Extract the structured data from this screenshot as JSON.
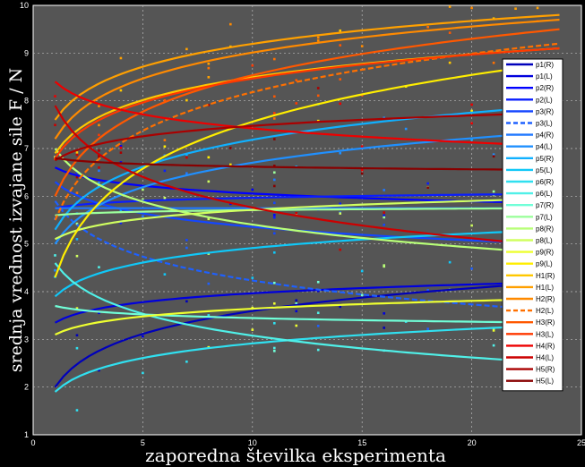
{
  "chart_data": {
    "type": "line",
    "title": "",
    "xlabel": "zaporedna številka eksperimenta",
    "ylabel": "srednja vrednost izvajane sile F / N",
    "xlim": [
      0,
      25
    ],
    "ylim": [
      1,
      10
    ],
    "xticks": [
      "0",
      "5",
      "10",
      "15",
      "20",
      "25"
    ],
    "yticks": [
      "1",
      "2",
      "3",
      "4",
      "5",
      "6",
      "7",
      "8",
      "9",
      "10"
    ],
    "grid": true,
    "legend_position": "right",
    "background": "#555555",
    "series": [
      {
        "name": "p1(R)",
        "color": "#0000bb",
        "x": [
          1,
          24
        ],
        "start": 2.0,
        "end": 4.2,
        "curve": "log"
      },
      {
        "name": "p1(L)",
        "color": "#0000dd",
        "x": [
          1,
          24
        ],
        "start": 3.35,
        "end": 4.2,
        "curve": "log"
      },
      {
        "name": "p2(R)",
        "color": "#0000ff",
        "x": [
          1,
          24
        ],
        "start": 6.6,
        "end": 5.85,
        "curve": "log"
      },
      {
        "name": "p2(L)",
        "color": "#0a1eff",
        "x": [
          1,
          24
        ],
        "start": 5.75,
        "end": 6.05,
        "curve": "log"
      },
      {
        "name": "p3(R)",
        "color": "#1446ff",
        "x": [
          1,
          24
        ],
        "start": 6.3,
        "end": 5.0,
        "curve": "log"
      },
      {
        "name": "p3(L)",
        "color": "#1e60ff",
        "x": [
          1,
          24
        ],
        "start": 5.9,
        "end": 3.6,
        "curve": "log",
        "dashed": true
      },
      {
        "name": "p4(R)",
        "color": "#2078ff",
        "x": [
          1,
          24
        ],
        "start": 5.75,
        "end": 5.75,
        "curve": "log"
      },
      {
        "name": "p4(L)",
        "color": "#2090ff",
        "x": [
          1,
          24
        ],
        "start": 5.0,
        "end": 7.35,
        "curve": "log"
      },
      {
        "name": "p5(R)",
        "color": "#10b0ff",
        "x": [
          1,
          24
        ],
        "start": 5.3,
        "end": 7.9,
        "curve": "log"
      },
      {
        "name": "p5(L)",
        "color": "#10c8f8",
        "x": [
          1,
          24
        ],
        "start": 3.9,
        "end": 5.3,
        "curve": "log"
      },
      {
        "name": "p6(R)",
        "color": "#30e0f0",
        "x": [
          1,
          24
        ],
        "start": 1.9,
        "end": 3.3,
        "curve": "log"
      },
      {
        "name": "p6(L)",
        "color": "#50f0e8",
        "x": [
          1,
          24
        ],
        "start": 4.6,
        "end": 2.5,
        "curve": "log"
      },
      {
        "name": "p7(R)",
        "color": "#70ffd8",
        "x": [
          1,
          24
        ],
        "start": 3.7,
        "end": 3.35,
        "curve": "log"
      },
      {
        "name": "p7(L)",
        "color": "#9cff9c",
        "x": [
          1,
          24
        ],
        "start": 5.6,
        "end": 5.75,
        "curve": "log"
      },
      {
        "name": "p8(R)",
        "color": "#b8ff78",
        "x": [
          1,
          24
        ],
        "start": 7.0,
        "end": 4.8,
        "curve": "log"
      },
      {
        "name": "p8(L)",
        "color": "#d0ff60",
        "x": [
          1,
          24
        ],
        "start": 5.1,
        "end": 5.95,
        "curve": "log"
      },
      {
        "name": "p9(R)",
        "color": "#eeff30",
        "x": [
          1,
          24
        ],
        "start": 3.1,
        "end": 3.85,
        "curve": "log"
      },
      {
        "name": "p9(L)",
        "color": "#ffee00",
        "x": [
          1,
          24
        ],
        "start": 4.3,
        "end": 8.8,
        "curve": "log"
      },
      {
        "name": "H1(R)",
        "color": "#ffc800",
        "x": [
          1,
          24
        ],
        "start": 6.9,
        "end": 9.1,
        "curve": "log"
      },
      {
        "name": "H1(L)",
        "color": "#ffa000",
        "x": [
          1,
          24
        ],
        "start": 7.6,
        "end": 9.8,
        "curve": "log"
      },
      {
        "name": "H2(R)",
        "color": "#ff8a00",
        "x": [
          1,
          24
        ],
        "start": 7.2,
        "end": 9.7,
        "curve": "log"
      },
      {
        "name": "H2(L)",
        "color": "#ff7000",
        "x": [
          1,
          24
        ],
        "start": 5.5,
        "end": 9.2,
        "curve": "log",
        "dashed": true
      },
      {
        "name": "H3(R)",
        "color": "#ff5800",
        "x": [
          1,
          24
        ],
        "start": 6.0,
        "end": 9.5,
        "curve": "log"
      },
      {
        "name": "H3(L)",
        "color": "#ff3800",
        "x": [
          1,
          24
        ],
        "start": 6.8,
        "end": 9.1,
        "curve": "log"
      },
      {
        "name": "H4(R)",
        "color": "#ee0000",
        "x": [
          1,
          24
        ],
        "start": 8.4,
        "end": 7.05,
        "curve": "log"
      },
      {
        "name": "H4(L)",
        "color": "#cc0000",
        "x": [
          1,
          24
        ],
        "start": 7.9,
        "end": 4.95,
        "curve": "log"
      },
      {
        "name": "H5(R)",
        "color": "#aa0000",
        "x": [
          1,
          24
        ],
        "start": 6.75,
        "end": 7.75,
        "curve": "log"
      },
      {
        "name": "H5(L)",
        "color": "#880000",
        "x": [
          1,
          24
        ],
        "start": 6.8,
        "end": 6.55,
        "curve": "log"
      }
    ]
  }
}
